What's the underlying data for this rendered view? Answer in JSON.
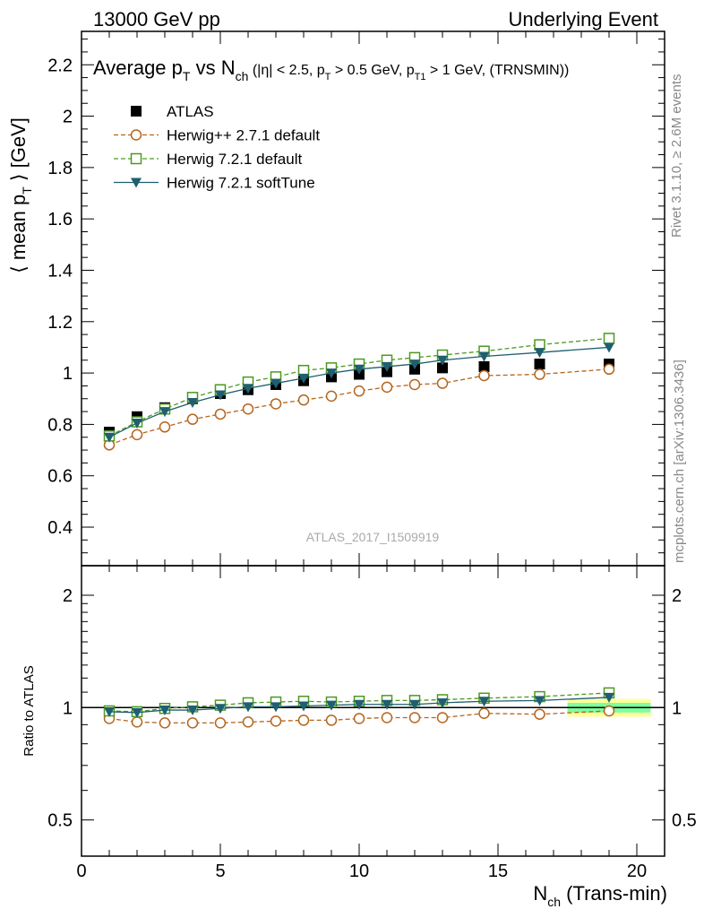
{
  "header": {
    "left": "13000 GeV pp",
    "right": "Underlying Event"
  },
  "title": {
    "main": "Average p",
    "main_sub": "T",
    "vs": " vs N",
    "vs_sub": "ch",
    "cuts_a": " (|η| < 2.5, p",
    "cuts_a_sub": "T",
    "cuts_b": " > 0.5 GeV, p",
    "cuts_b_sub": "T1",
    "cuts_c": " > 1 GeV, (TRNSMIN))"
  },
  "side_labels": {
    "rivet": "Rivet 3.1.10, ≥ 2.6M events",
    "mcplots": "mcplots.cern.ch [arXiv:1306.3436]"
  },
  "watermark": "ATLAS_2017_I1509919",
  "colors": {
    "atlas": "#000000",
    "herwigpp": "#b5651d",
    "herwig_default": "#4c9a1f",
    "herwig_soft": "#1f5f6f",
    "band_inner": "#7fff9f",
    "band_outer": "#ffff99"
  },
  "chart_data": [
    {
      "type": "scatter",
      "panel": "main",
      "ylabel": "⟨ mean p",
      "ylabel_sub": "T",
      "ylabel_end": " ⟩ [GeV]",
      "ylim": [
        0.25,
        2.33
      ],
      "xlim": [
        0,
        21
      ],
      "y_ticks": [
        "0.4",
        "0.6",
        "0.8",
        "1",
        "1.2",
        "1.4",
        "1.6",
        "1.8",
        "2",
        "2.2"
      ],
      "legend_position": "top-left",
      "x": [
        1,
        2,
        3,
        4,
        5,
        6,
        7,
        8,
        9,
        10,
        11,
        12,
        13,
        14.5,
        16.5,
        19
      ],
      "series": [
        {
          "name": "ATLAS",
          "marker": "square-filled",
          "line": "none",
          "values": [
            0.77,
            0.83,
            0.865,
            0.9,
            0.92,
            0.935,
            0.955,
            0.97,
            0.985,
            0.995,
            1.005,
            1.015,
            1.02,
            1.025,
            1.035,
            1.035
          ]
        },
        {
          "name": "Herwig++ 2.7.1 default",
          "marker": "circle-open",
          "line": "dashed",
          "values": [
            0.72,
            0.76,
            0.79,
            0.82,
            0.84,
            0.86,
            0.88,
            0.895,
            0.91,
            0.93,
            0.945,
            0.955,
            0.96,
            0.99,
            0.995,
            1.015
          ]
        },
        {
          "name": "Herwig 7.2.1 default",
          "marker": "square-open",
          "line": "dashed",
          "values": [
            0.755,
            0.81,
            0.86,
            0.905,
            0.935,
            0.965,
            0.985,
            1.01,
            1.02,
            1.035,
            1.05,
            1.06,
            1.07,
            1.085,
            1.11,
            1.135
          ]
        },
        {
          "name": "Herwig 7.2.1 softTune",
          "marker": "triangle-down-filled",
          "line": "solid",
          "values": [
            0.75,
            0.805,
            0.85,
            0.885,
            0.915,
            0.94,
            0.96,
            0.98,
            1.0,
            1.015,
            1.025,
            1.035,
            1.05,
            1.065,
            1.08,
            1.1
          ]
        }
      ]
    },
    {
      "type": "scatter",
      "panel": "ratio",
      "ylabel": "Ratio to ATLAS",
      "xlabel": "N",
      "xlabel_sub": "ch",
      "xlabel_end": " (Trans-min)",
      "yscale": "log",
      "ylim": [
        0.4,
        2.4
      ],
      "xlim": [
        0,
        21
      ],
      "x_ticks": [
        "0",
        "5",
        "10",
        "15",
        "20"
      ],
      "y_ticks_left": [
        "0.5",
        "1",
        "2"
      ],
      "y_ticks_right": [
        "0.5",
        "1",
        "2"
      ],
      "x": [
        1,
        2,
        3,
        4,
        5,
        6,
        7,
        8,
        9,
        10,
        11,
        12,
        13,
        14.5,
        16.5,
        19
      ],
      "band": {
        "x": [
          17.5,
          20.5
        ],
        "inner": [
          0.97,
          1.03
        ],
        "outer": [
          0.945,
          1.055
        ]
      },
      "series": [
        {
          "name": "Herwig++ 2.7.1 default",
          "marker": "circle-open",
          "line": "dashed",
          "values": [
            0.935,
            0.915,
            0.91,
            0.91,
            0.91,
            0.915,
            0.92,
            0.925,
            0.925,
            0.935,
            0.94,
            0.94,
            0.94,
            0.965,
            0.96,
            0.98
          ]
        },
        {
          "name": "Herwig 7.2.1 default",
          "marker": "square-open",
          "line": "dashed",
          "values": [
            0.98,
            0.975,
            0.995,
            1.005,
            1.015,
            1.03,
            1.035,
            1.04,
            1.035,
            1.04,
            1.045,
            1.045,
            1.05,
            1.06,
            1.07,
            1.095
          ]
        },
        {
          "name": "Herwig 7.2.1 softTune",
          "marker": "triangle-down-filled",
          "line": "solid",
          "values": [
            0.975,
            0.97,
            0.985,
            0.985,
            0.995,
            1.005,
            1.005,
            1.01,
            1.015,
            1.02,
            1.02,
            1.02,
            1.03,
            1.04,
            1.045,
            1.065
          ]
        }
      ]
    }
  ]
}
